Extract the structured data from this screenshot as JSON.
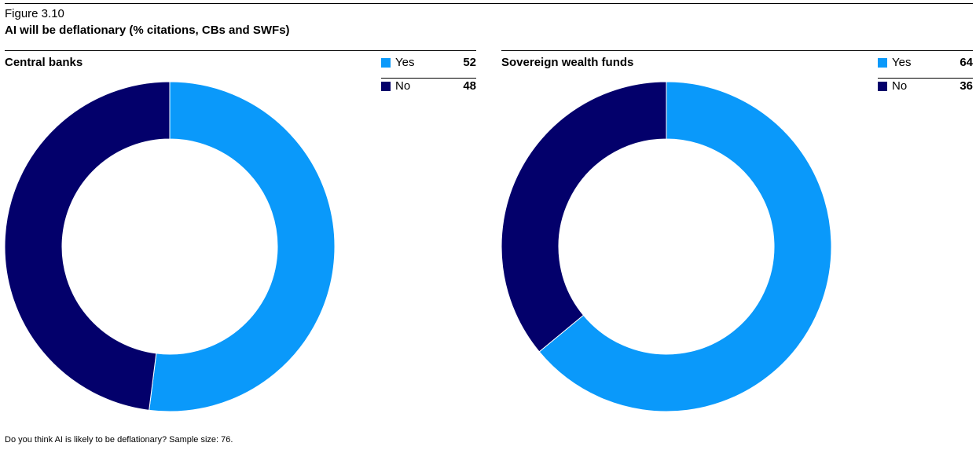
{
  "figure_label": "Figure 3.10",
  "figure_title": "AI will be deflationary (% citations, CBs and SWFs)",
  "footnote": "Do you think AI is likely to be deflationary? Sample size: 76.",
  "colors": {
    "yes": "#0a99fa",
    "no": "#03006b"
  },
  "chart_data": [
    {
      "type": "pie",
      "title": "Central banks",
      "categories": [
        "Yes",
        "No"
      ],
      "values": [
        52,
        48
      ],
      "legend_position": "top-right",
      "donut": true
    },
    {
      "type": "pie",
      "title": "Sovereign wealth funds",
      "categories": [
        "Yes",
        "No"
      ],
      "values": [
        64,
        36
      ],
      "legend_position": "top-right",
      "donut": true
    }
  ]
}
